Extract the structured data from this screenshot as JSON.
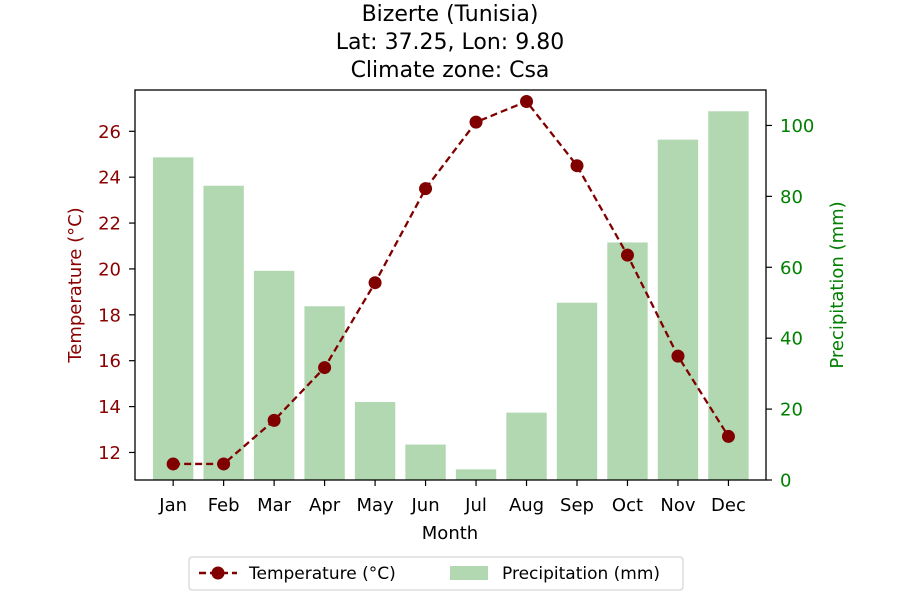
{
  "chart_data": {
    "type": "bar+line",
    "title": [
      "Bizerte (Tunisia)",
      "Lat: 37.25, Lon: 9.80",
      "Climate zone: Csa"
    ],
    "xlabel": "Month",
    "categories": [
      "Jan",
      "Feb",
      "Mar",
      "Apr",
      "May",
      "Jun",
      "Jul",
      "Aug",
      "Sep",
      "Oct",
      "Nov",
      "Dec"
    ],
    "y_left": {
      "label": "Temperature (°C)",
      "ticks": [
        12,
        14,
        16,
        18,
        20,
        22,
        24,
        26
      ],
      "lim": [
        10.8,
        27.8
      ],
      "color": "#8b0000"
    },
    "y_right": {
      "label": "Precipitation (mm)",
      "ticks": [
        0,
        20,
        40,
        60,
        80,
        100
      ],
      "lim": [
        0,
        110
      ],
      "color": "#008000"
    },
    "series": [
      {
        "name": "Temperature (°C)",
        "kind": "line",
        "axis": "left",
        "color": "#800000",
        "values": [
          11.5,
          11.5,
          13.4,
          15.7,
          19.4,
          23.5,
          26.4,
          27.3,
          24.5,
          20.6,
          16.2,
          12.7
        ]
      },
      {
        "name": "Precipitation (mm)",
        "kind": "bar",
        "axis": "right",
        "color": "#b2d8b2",
        "values": [
          91,
          83,
          59,
          49,
          22,
          10,
          3,
          19,
          50,
          67,
          96,
          104
        ]
      }
    ],
    "legend": {
      "placement": "bottom-center"
    }
  }
}
